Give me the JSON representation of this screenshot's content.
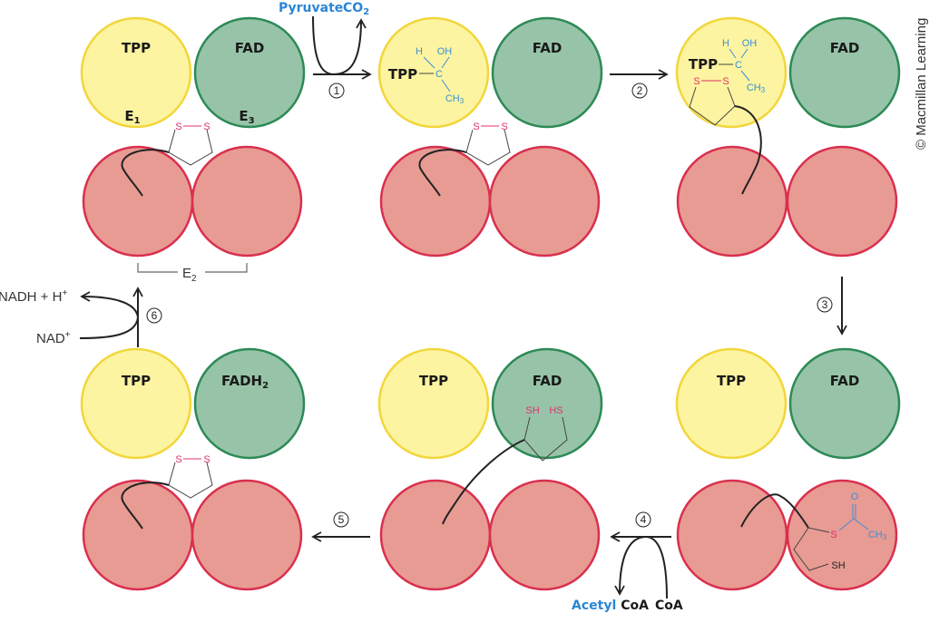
{
  "labels": {
    "tpp": "TPP",
    "fad": "FAD",
    "fadh2": "FADH",
    "fadh2_sub": "2",
    "e1": "E",
    "e1_sub": "1",
    "e3": "E",
    "e3_sub": "3",
    "e2": "E",
    "e2_sub": "2"
  },
  "chem": {
    "h": "H",
    "oh": "OH",
    "c": "C",
    "ch3": "CH",
    "ch3_sub": "3",
    "s": "S",
    "o": "O",
    "sh": "SH",
    "hs": "HS"
  },
  "reagents": {
    "pyruvate": "Pyruvate",
    "co2": "CO",
    "co2_sub": "2",
    "acetyl_coa": "Acetyl",
    "coa_product": "CoA",
    "coa": "CoA",
    "nad": "NAD",
    "nadh": "NADH + H",
    "plus": "+"
  },
  "steps": [
    "1",
    "2",
    "3",
    "4",
    "5",
    "6"
  ],
  "credit": "© Macmillan Learning",
  "colors": {
    "tpp": "#fcf4a0",
    "fad": "#97c4a9",
    "e2": "#e89b93",
    "reagent_text": "#2a86d6",
    "sulfur": "#e0306a"
  }
}
